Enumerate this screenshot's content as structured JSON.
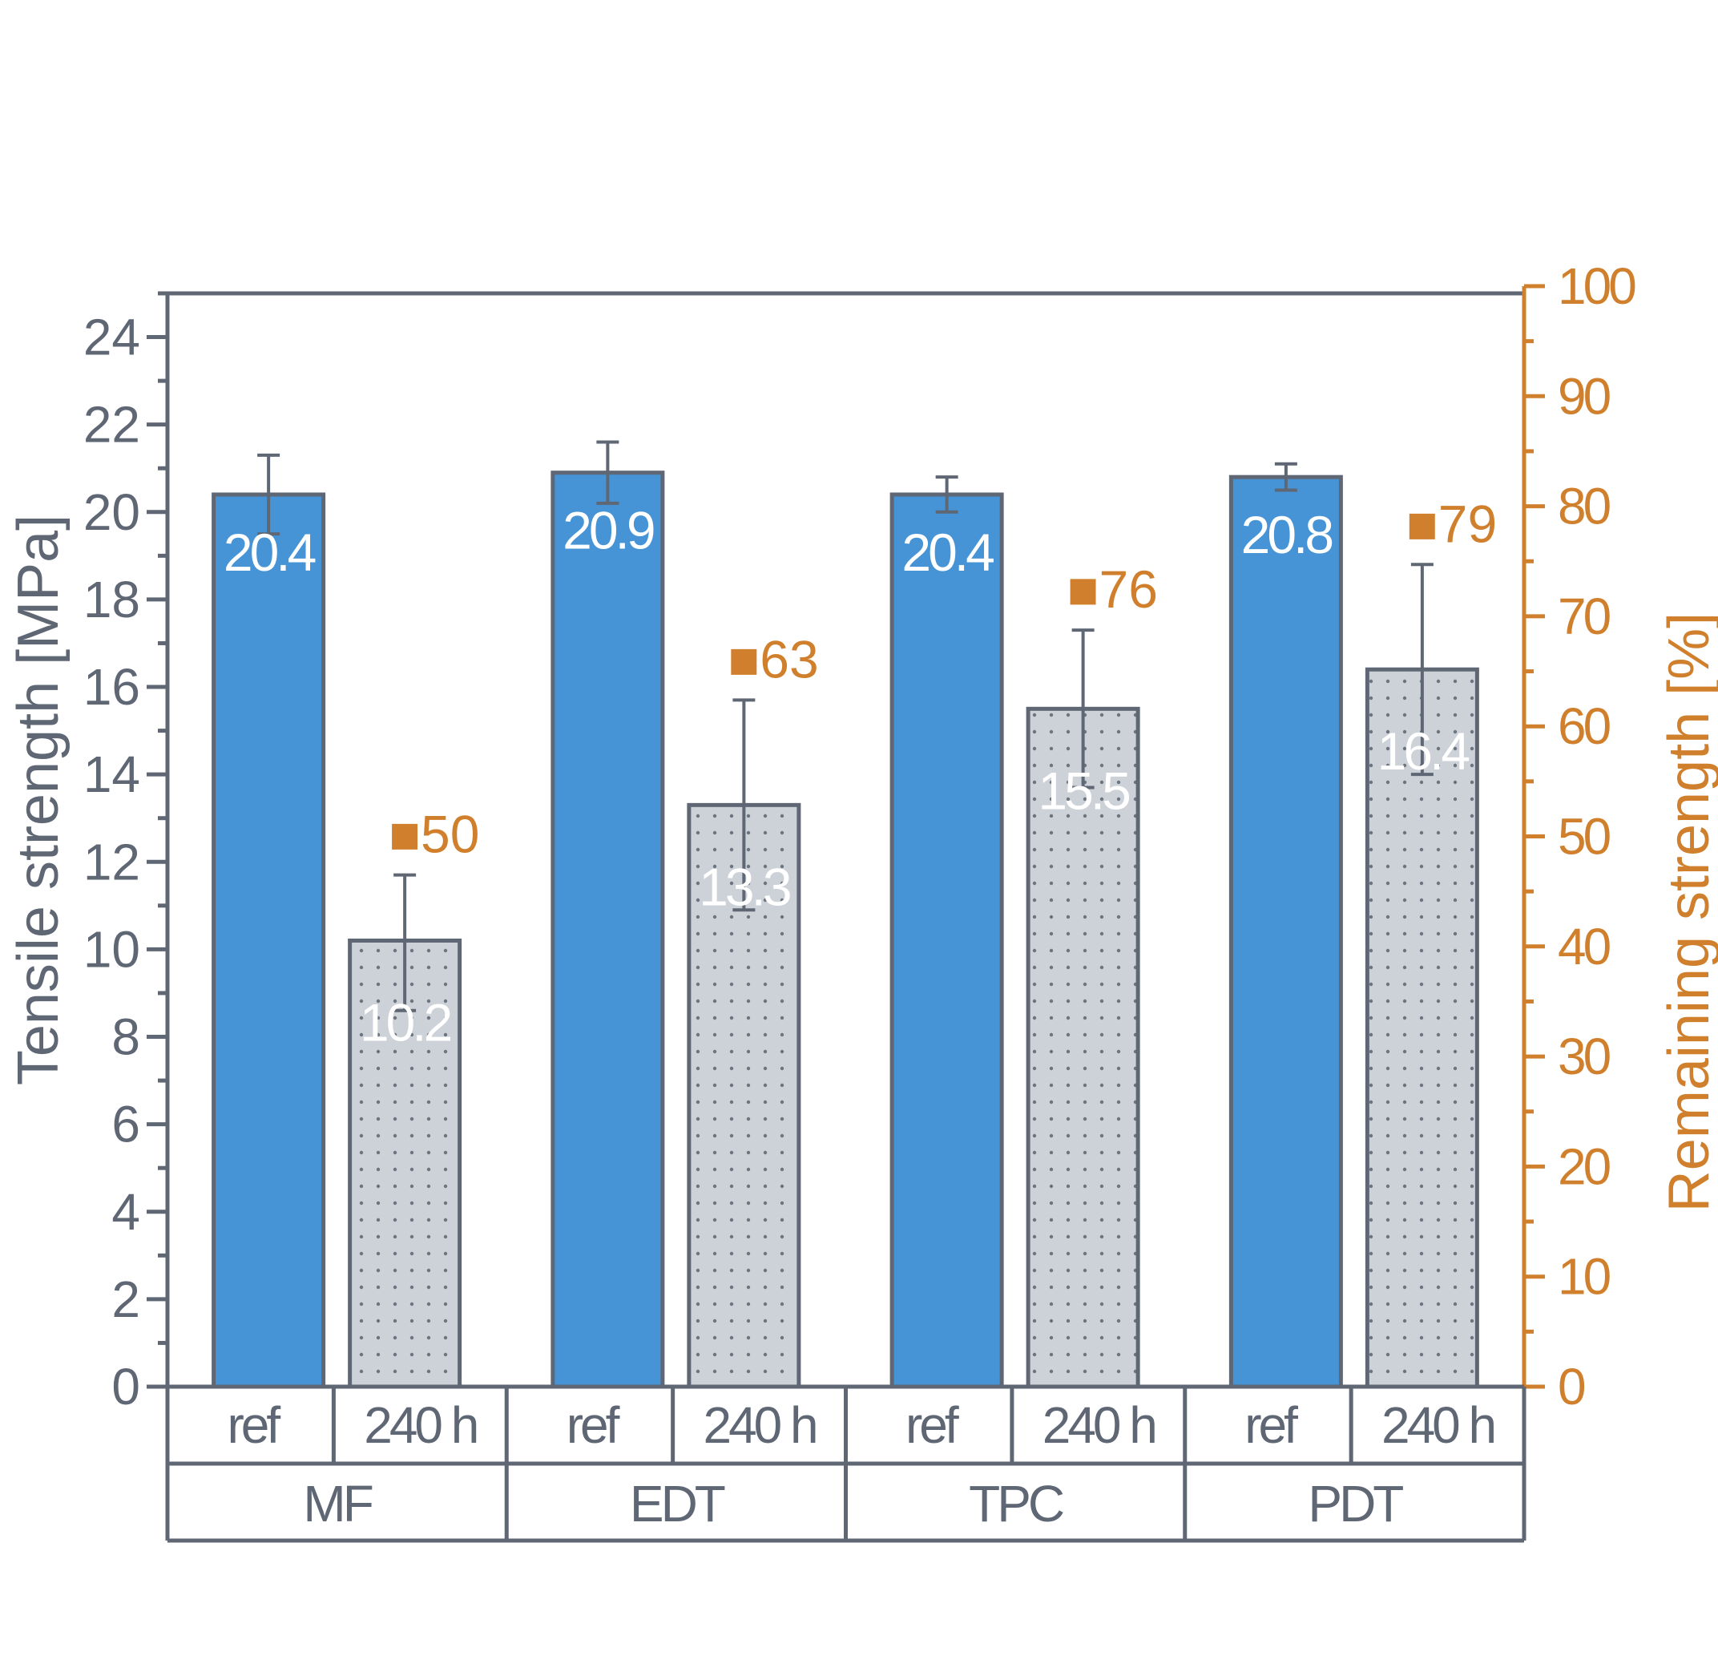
{
  "chart_data": {
    "type": "bar",
    "groups": [
      "MF",
      "EDT",
      "TPC",
      "PDT"
    ],
    "subcategories": [
      "ref",
      "240 h"
    ],
    "ylabel": "Tensile strength [MPa]",
    "y2label": "Remaining strength [%]",
    "ylim": [
      0,
      25
    ],
    "y2lim": [
      0,
      100
    ],
    "yticks": [
      "0",
      "2",
      "4",
      "6",
      "8",
      "10",
      "12",
      "14",
      "16",
      "18",
      "20",
      "22",
      "24"
    ],
    "y2ticks": [
      "0",
      "10",
      "20",
      "30",
      "40",
      "50",
      "60",
      "70",
      "80",
      "90",
      "100"
    ],
    "series": [
      {
        "name": "ref",
        "values": [
          20.4,
          20.9,
          20.4,
          20.8
        ],
        "labels": [
          "20.4",
          "20.9",
          "20.4",
          "20.8"
        ],
        "err_low": [
          19.5,
          20.2,
          20.0,
          20.5
        ],
        "err_high": [
          21.3,
          21.6,
          20.8,
          21.1
        ],
        "color": "#4694d6"
      },
      {
        "name": "240 h",
        "values": [
          10.2,
          13.3,
          15.5,
          16.4
        ],
        "labels": [
          "10.2",
          "13.3",
          "15.5",
          "16.4"
        ],
        "err_low": [
          8.6,
          10.9,
          13.7,
          14.0
        ],
        "err_high": [
          11.7,
          15.7,
          17.3,
          18.8
        ],
        "color": "#cdd1d8"
      }
    ],
    "remaining_strength": {
      "values": [
        50,
        63,
        76,
        79
      ],
      "labels": [
        "50",
        "63",
        "76",
        "79"
      ],
      "marker": "■"
    },
    "colors": {
      "axis": "#5f6775",
      "right_axis": "#d0802d",
      "ref_bar": "#4694d6",
      "aged_bar": "#cdd1d8"
    },
    "grid": false
  }
}
